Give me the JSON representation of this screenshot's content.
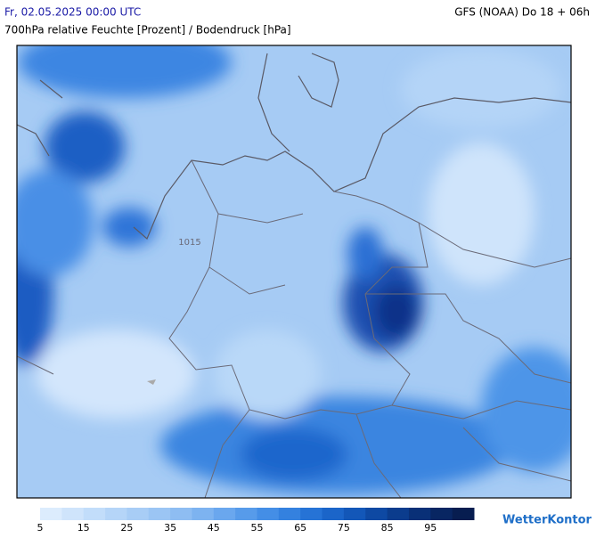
{
  "header": {
    "date": "Fr, 02.05.2025 00:00 UTC",
    "model": "GFS (NOAA) Do 18 + 06h",
    "title": "700hPa relative Feuchte [Prozent] / Bodendruck [hPa]"
  },
  "map": {
    "isobar_label": "1015"
  },
  "legend": {
    "range": [
      5,
      105
    ],
    "ticks": [
      5,
      15,
      25,
      35,
      45,
      55,
      65,
      75,
      85,
      95
    ],
    "colors": [
      "#dcecfd",
      "#cfe4fb",
      "#c2ddfa",
      "#b5d5f8",
      "#a8cdf6",
      "#9bc5f4",
      "#8ebdf2",
      "#7db3f0",
      "#6aa7ee",
      "#579bea",
      "#448ee6",
      "#3481df",
      "#2673d6",
      "#1b65c9",
      "#1357b8",
      "#0e49a3",
      "#0b3c8d",
      "#093077",
      "#082662",
      "#071d50"
    ]
  },
  "logo": "WetterKontor"
}
